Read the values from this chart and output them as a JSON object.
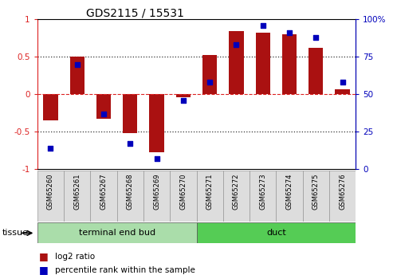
{
  "title": "GDS2115 / 15531",
  "samples": [
    "GSM65260",
    "GSM65261",
    "GSM65267",
    "GSM65268",
    "GSM65269",
    "GSM65270",
    "GSM65271",
    "GSM65272",
    "GSM65273",
    "GSM65274",
    "GSM65275",
    "GSM65276"
  ],
  "log2_ratio": [
    -0.35,
    0.5,
    -0.33,
    -0.52,
    -0.78,
    -0.04,
    0.52,
    0.84,
    0.82,
    0.8,
    0.62,
    0.07
  ],
  "percentile_rank": [
    14,
    70,
    37,
    17,
    7,
    46,
    58,
    83,
    96,
    91,
    88,
    58
  ],
  "groups": [
    {
      "label": "terminal end bud",
      "start": 0,
      "end": 6,
      "color": "#AADDAA"
    },
    {
      "label": "duct",
      "start": 6,
      "end": 12,
      "color": "#55CC55"
    }
  ],
  "tissue_label": "tissue",
  "ylim_left": [
    -1,
    1
  ],
  "bar_color": "#AA1111",
  "dot_color": "#0000BB",
  "hline_color": "#DD2222",
  "dotted_color": "#333333",
  "bg_color": "#FFFFFF",
  "legend_log2": "log2 ratio",
  "legend_pct": "percentile rank within the sample",
  "bar_width": 0.55,
  "left_yticks": [
    -1,
    -0.5,
    0,
    0.5,
    1
  ],
  "left_yticklabels": [
    "-1",
    "-0.5",
    "0",
    "0.5",
    "1"
  ],
  "right_yticks": [
    0,
    25,
    50,
    75,
    100
  ],
  "right_yticklabels": [
    "0",
    "25",
    "50",
    "75",
    "100%"
  ]
}
